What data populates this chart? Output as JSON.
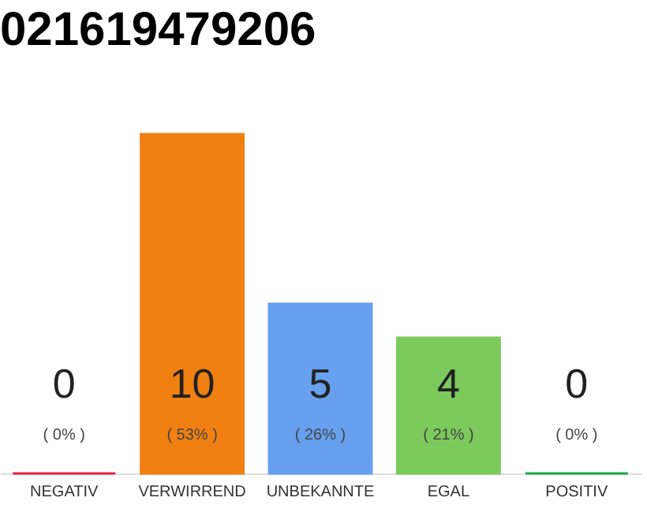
{
  "chart_data": {
    "type": "bar",
    "title": "021619479206",
    "categories": [
      "NEGATIV",
      "VERWIRREND",
      "UNBEKANNTE",
      "EGAL",
      "POSITIV"
    ],
    "values": [
      0,
      10,
      5,
      4,
      0
    ],
    "colors": [
      "#e8203a",
      "#f08012",
      "#66a0ee",
      "#7cc95c",
      "#1ea44a"
    ],
    "ylim": [
      0,
      10
    ],
    "tick_labels": "x",
    "grid": false,
    "data_labels": true,
    "annotations": [
      "( 0% )",
      "( 53% )",
      "( 26% )",
      "( 21% )",
      "( 0% )"
    ]
  }
}
